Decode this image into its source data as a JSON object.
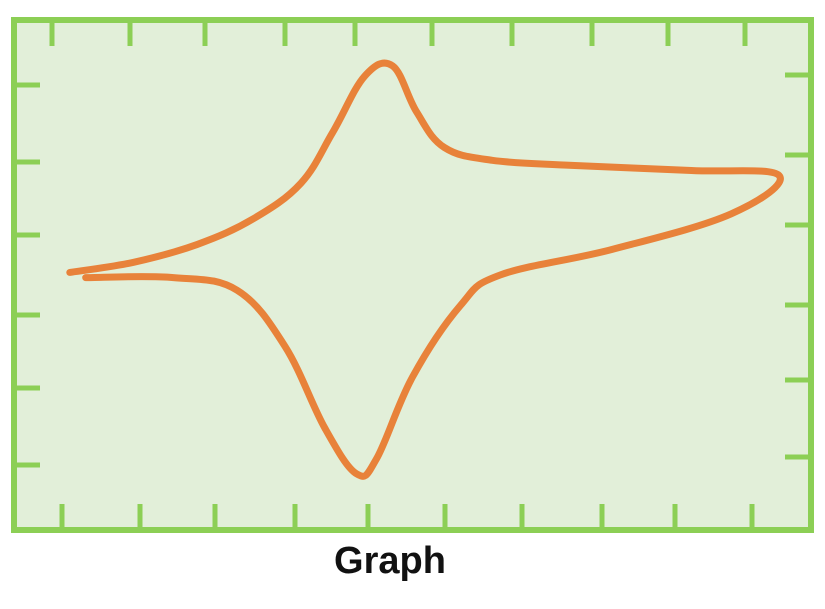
{
  "caption": "Graph",
  "colors": {
    "frame": "#8ccf55",
    "background": "#e2efd9",
    "curve": "#e8823a"
  },
  "chart_data": {
    "type": "line",
    "title": "",
    "xlabel": "",
    "ylabel": "",
    "grid": false,
    "legend": "none",
    "shape": "cyclic voltammogram",
    "xlim": [
      0,
      10
    ],
    "ylim": [
      -5,
      5
    ],
    "series": [
      {
        "points": [
          [
            0.7,
            0.05
          ],
          [
            1.5,
            0.25
          ],
          [
            2.3,
            0.6
          ],
          [
            3.0,
            1.1
          ],
          [
            3.6,
            1.8
          ],
          [
            4.0,
            2.8
          ],
          [
            4.4,
            3.9
          ],
          [
            4.75,
            4.1
          ],
          [
            5.05,
            3.2
          ],
          [
            5.4,
            2.5
          ],
          [
            6.0,
            2.25
          ],
          [
            7.0,
            2.15
          ],
          [
            8.5,
            2.05
          ],
          [
            9.6,
            1.95
          ],
          [
            9.0,
            1.2
          ],
          [
            7.5,
            0.5
          ],
          [
            6.1,
            0.0
          ],
          [
            5.6,
            -0.6
          ],
          [
            5.0,
            -2.0
          ],
          [
            4.55,
            -3.6
          ],
          [
            4.3,
            -3.9
          ],
          [
            3.9,
            -3.0
          ],
          [
            3.4,
            -1.4
          ],
          [
            2.8,
            -0.3
          ],
          [
            2.0,
            -0.05
          ],
          [
            0.9,
            -0.05
          ]
        ]
      }
    ]
  }
}
